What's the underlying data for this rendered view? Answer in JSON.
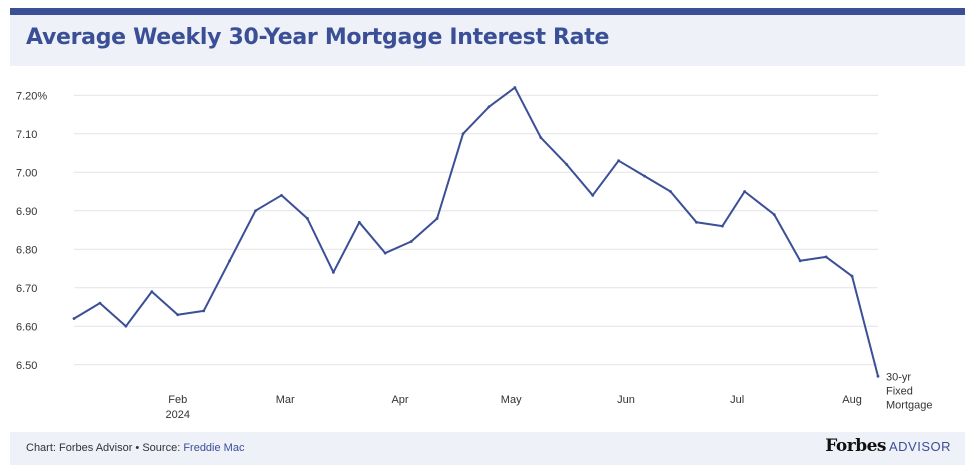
{
  "chart_data": {
    "type": "line",
    "title": "Average Weekly 30-Year Mortgage Interest Rate",
    "x": [
      "2024-01-04",
      "2024-01-11",
      "2024-01-18",
      "2024-01-25",
      "2024-02-01",
      "2024-02-08",
      "2024-02-15",
      "2024-02-22",
      "2024-02-29",
      "2024-03-07",
      "2024-03-14",
      "2024-03-21",
      "2024-03-28",
      "2024-04-04",
      "2024-04-11",
      "2024-04-18",
      "2024-04-25",
      "2024-05-02",
      "2024-05-09",
      "2024-05-16",
      "2024-05-23",
      "2024-05-30",
      "2024-06-06",
      "2024-06-13",
      "2024-06-20",
      "2024-06-27",
      "2024-07-03",
      "2024-07-11",
      "2024-07-18",
      "2024-07-25",
      "2024-08-01",
      "2024-08-08"
    ],
    "x_tick_labels": [
      {
        "date": "2024-02-01",
        "label": "Feb",
        "sublabel": "2024"
      },
      {
        "date": "2024-03-01",
        "label": "Mar",
        "sublabel": ""
      },
      {
        "date": "2024-04-01",
        "label": "Apr",
        "sublabel": ""
      },
      {
        "date": "2024-05-01",
        "label": "May",
        "sublabel": ""
      },
      {
        "date": "2024-06-01",
        "label": "Jun",
        "sublabel": ""
      },
      {
        "date": "2024-07-01",
        "label": "Jul",
        "sublabel": ""
      },
      {
        "date": "2024-08-01",
        "label": "Aug",
        "sublabel": ""
      }
    ],
    "y_ticks": [
      {
        "value": 6.5,
        "label": "6.50"
      },
      {
        "value": 6.6,
        "label": "6.60"
      },
      {
        "value": 6.7,
        "label": "6.70"
      },
      {
        "value": 6.8,
        "label": "6.80"
      },
      {
        "value": 6.9,
        "label": "6.90"
      },
      {
        "value": 7.0,
        "label": "7.00"
      },
      {
        "value": 7.1,
        "label": "7.10"
      },
      {
        "value": 7.2,
        "label": "7.20%"
      }
    ],
    "ylim": [
      6.45,
      7.25
    ],
    "grid": true,
    "series": [
      {
        "name": "30-yr Fixed Mortgage",
        "name_lines": [
          "30-yr",
          "Fixed",
          "Mortgage"
        ],
        "color": "#3b4f96",
        "values": [
          6.62,
          6.66,
          6.6,
          6.69,
          6.63,
          6.64,
          6.77,
          6.9,
          6.94,
          6.88,
          6.74,
          6.87,
          6.79,
          6.82,
          6.88,
          7.1,
          7.17,
          7.22,
          7.09,
          7.02,
          6.94,
          7.03,
          6.99,
          6.95,
          6.87,
          6.86,
          6.95,
          6.89,
          6.77,
          6.78,
          6.73,
          6.47
        ]
      }
    ]
  },
  "footer": {
    "source_prefix": "Chart: Forbes Advisor • Source: ",
    "source_link": "Freddie Mac",
    "brand_name": "Forbes",
    "brand_suffix": "ADVISOR"
  },
  "colors": {
    "accent": "#3b4f96",
    "background": "#eef1f8",
    "grid": "#e3e3e3"
  }
}
